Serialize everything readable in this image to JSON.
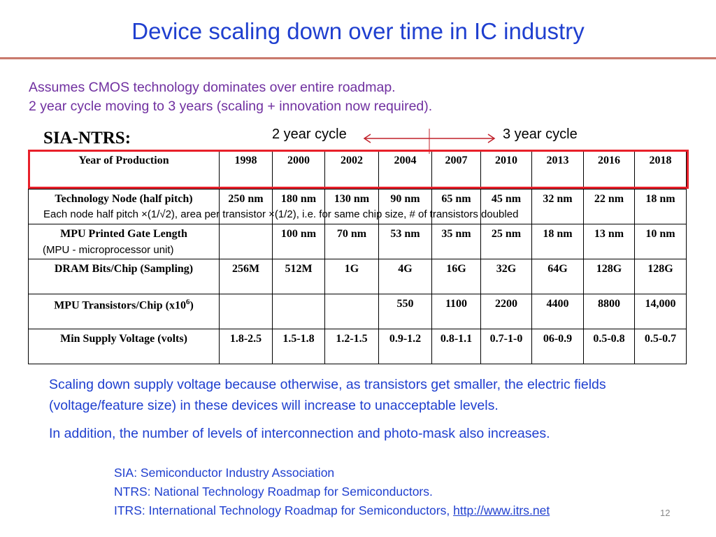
{
  "slide": {
    "title": "Device scaling down over time in IC industry",
    "intro": [
      "Assumes CMOS technology dominates over entire roadmap.",
      "2 year cycle moving to 3 years (scaling + innovation now required)."
    ],
    "sia_label": "SIA-NTRS:",
    "cycle_left": "2 year cycle",
    "cycle_right": "3 year cycle",
    "colors": {
      "title": "#1f3fcf",
      "intro": "#7030a0",
      "header_box": "#e8202a",
      "arrow": "#c0202a"
    }
  },
  "table": {
    "header_label": "Year of Production",
    "years": [
      "1998",
      "2000",
      "2002",
      "2004",
      "2007",
      "2010",
      "2013",
      "2016",
      "2018"
    ],
    "rows": [
      {
        "label": "Technology Node (half pitch)",
        "values": [
          "250 nm",
          "180 nm",
          "130 nm",
          "90 nm",
          "65 nm",
          "45 nm",
          "32 nm",
          "22 nm",
          "18 nm"
        ],
        "note": "Each node half pitch ×(1/√2), area per transistor ×(1/2), i.e. for same chip size, # of transistors doubled"
      },
      {
        "label": "MPU Printed Gate Length",
        "values": [
          "",
          "100 nm",
          "70 nm",
          "53 nm",
          "35 nm",
          "25 nm",
          "18 nm",
          "13 nm",
          "10 nm"
        ],
        "note": "(MPU - microprocessor unit)"
      },
      {
        "label": "DRAM Bits/Chip (Sampling)",
        "values": [
          "256M",
          "512M",
          "1G",
          "4G",
          "16G",
          "32G",
          "64G",
          "128G",
          "128G"
        ]
      },
      {
        "label_main": "MPU Transistors/Chip (x10",
        "label_sup": "6",
        "label_end": ")",
        "values": [
          "",
          "",
          "",
          "550",
          "1100",
          "2200",
          "4400",
          "8800",
          "14,000"
        ]
      },
      {
        "label": "Min Supply Voltage (volts)",
        "values": [
          "1.8-2.5",
          "1.5-1.8",
          "1.2-1.5",
          "0.9-1.2",
          "0.8-1.1",
          "0.7-1-0",
          "06-0.9",
          "0.5-0.8",
          "0.5-0.7"
        ]
      }
    ]
  },
  "body": {
    "p1": "Scaling down supply voltage because otherwise, as transistors get smaller, the electric fields (voltage/feature size) in these devices will increase to unacceptable levels.",
    "p2": "In addition, the number of levels of interconnection and photo-mask also increases."
  },
  "definitions": {
    "sia": "SIA:  Semiconductor Industry Association",
    "ntrs": "NTRS: National Technology Roadmap for Semiconductors.",
    "itrs": "ITRS: International Technology Roadmap for Semiconductors,",
    "itrs_link": "http://www.itrs.net"
  },
  "page_number": "12"
}
